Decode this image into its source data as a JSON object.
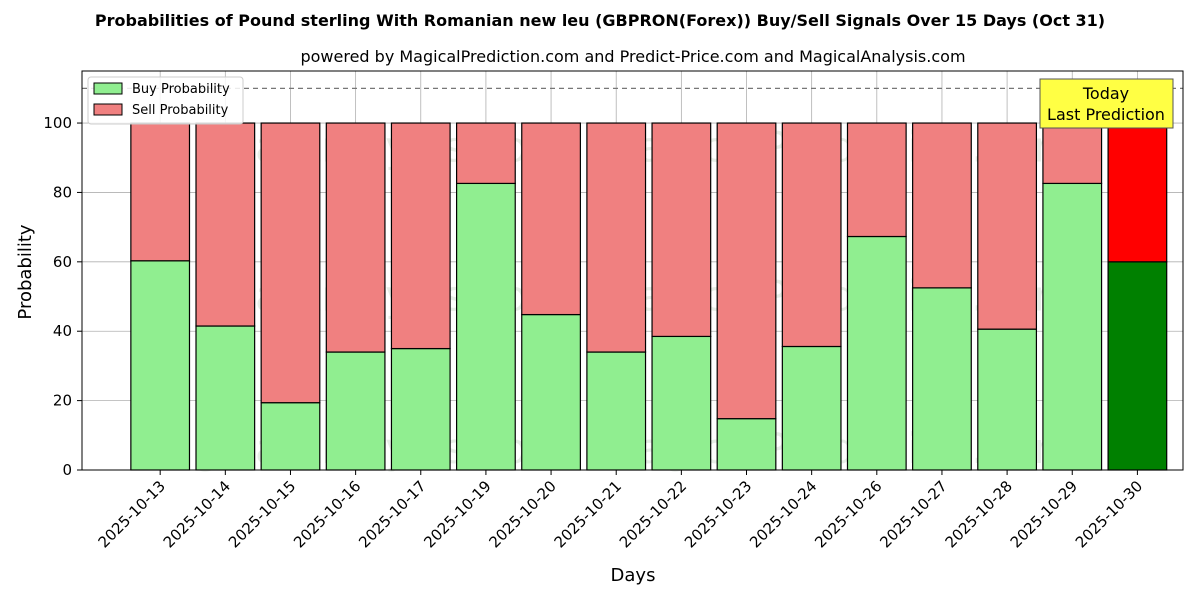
{
  "chart_data": {
    "type": "bar",
    "title": "Probabilities of Pound sterling With Romanian new leu (GBPRON(Forex)) Buy/Sell Signals Over 15 Days (Oct 31)",
    "subtitle": "powered by MagicalPrediction.com and Predict-Price.com and MagicalAnalysis.com",
    "xlabel": "Days",
    "ylabel": "Probability",
    "ylim": [
      0,
      115
    ],
    "yticks": [
      0,
      20,
      40,
      60,
      80,
      100
    ],
    "reference_line": 110,
    "grid": true,
    "legend_position": "top-left",
    "categories": [
      "2025-10-13",
      "2025-10-14",
      "2025-10-15",
      "2025-10-16",
      "2025-10-17",
      "2025-10-19",
      "2025-10-20",
      "2025-10-21",
      "2025-10-22",
      "2025-10-23",
      "2025-10-24",
      "2025-10-26",
      "2025-10-27",
      "2025-10-28",
      "2025-10-29",
      "2025-10-30"
    ],
    "series": [
      {
        "name": "Buy Probability",
        "color": "#90ee90",
        "today_color": "#008000",
        "values": [
          60.3,
          41.5,
          19.4,
          34.0,
          35.0,
          82.6,
          44.8,
          34.0,
          38.5,
          14.8,
          35.6,
          67.3,
          52.5,
          40.6,
          82.6,
          60.0
        ]
      },
      {
        "name": "Sell Probability",
        "color": "#f08080",
        "today_color": "#ff0000",
        "values": [
          39.7,
          58.5,
          80.6,
          66.0,
          65.0,
          17.4,
          55.2,
          66.0,
          61.5,
          85.2,
          64.4,
          32.7,
          47.5,
          59.4,
          17.4,
          40.0
        ]
      }
    ],
    "annotation": {
      "line1": "Today",
      "line2": "Last Prediction",
      "color": "#ffff44"
    },
    "watermarks": [
      "MagicalAnalysis.com",
      "MagicalPrediction.com"
    ]
  }
}
